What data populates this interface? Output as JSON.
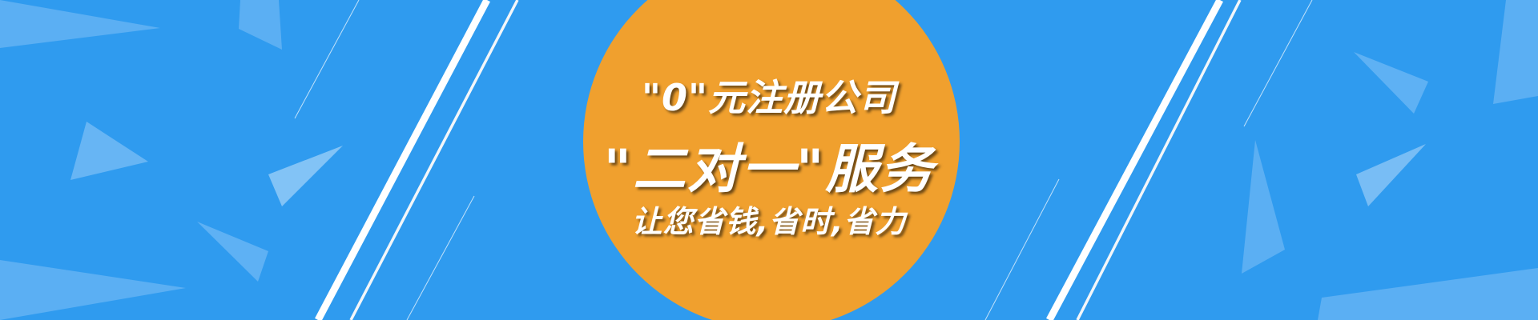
{
  "banner": {
    "line1": "\"0\"元注册公司",
    "line2": "\"二对一\"服务",
    "line3": "让您省钱,省时,省力"
  },
  "colors": {
    "background": "#2f9bef",
    "circle": "#f0a02e",
    "text": "#ffffff"
  }
}
